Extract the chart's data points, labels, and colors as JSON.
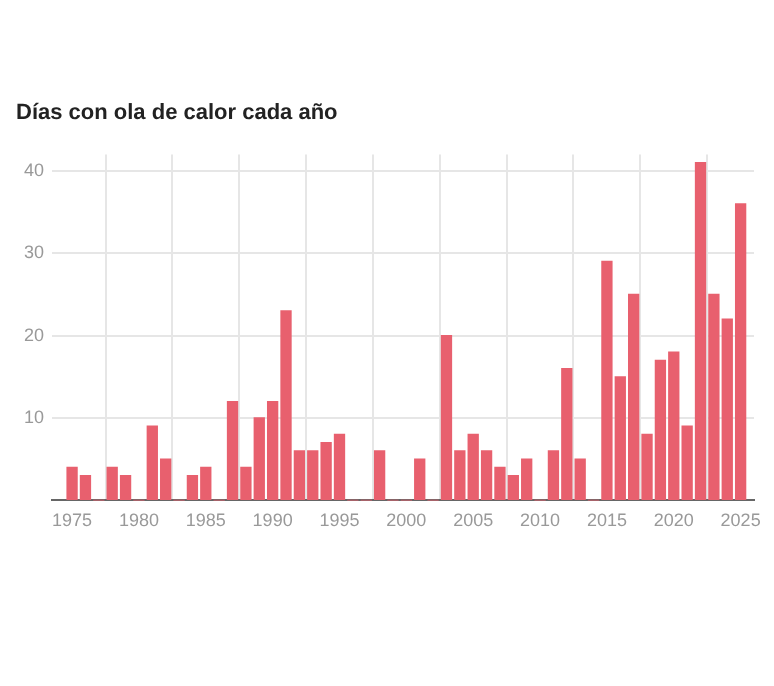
{
  "chart_data": {
    "type": "bar",
    "title": "Días con ola de calor cada año",
    "x": [
      1975,
      1976,
      1977,
      1978,
      1979,
      1980,
      1981,
      1982,
      1983,
      1984,
      1985,
      1986,
      1987,
      1988,
      1989,
      1990,
      1991,
      1992,
      1993,
      1994,
      1995,
      1996,
      1997,
      1998,
      1999,
      2000,
      2001,
      2002,
      2003,
      2004,
      2005,
      2006,
      2007,
      2008,
      2009,
      2010,
      2011,
      2012,
      2013,
      2014,
      2015,
      2016,
      2017,
      2018,
      2019,
      2020,
      2021,
      2022,
      2023,
      2024,
      2025
    ],
    "values": [
      4,
      3,
      0,
      4,
      3,
      0,
      9,
      5,
      0,
      3,
      4,
      0,
      12,
      4,
      10,
      12,
      23,
      6,
      6,
      7,
      8,
      0,
      0,
      6,
      0,
      0,
      5,
      0,
      20,
      6,
      8,
      6,
      4,
      3,
      5,
      0,
      6,
      16,
      5,
      0,
      29,
      15,
      25,
      8,
      17,
      18,
      9,
      41,
      25,
      22,
      36
    ],
    "color": "#e8606e",
    "xlim": [
      1973.5,
      2026
    ],
    "xticks": [
      1975,
      1980,
      1985,
      1990,
      1995,
      2000,
      2005,
      2010,
      2015,
      2020,
      2025
    ],
    "ylim": [
      0,
      42
    ],
    "yticks": [
      {
        "value": 0,
        "label": null
      },
      10,
      20,
      30,
      40
    ],
    "grid": true,
    "legend": false
  }
}
